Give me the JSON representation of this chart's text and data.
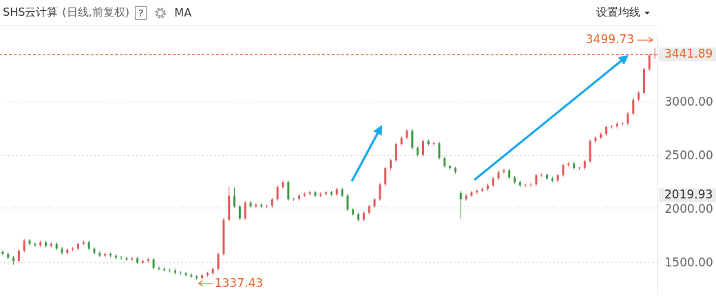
{
  "chart_data": {
    "type": "candlestick",
    "title": "SHS云计算",
    "subtitle": "(日线,前复权)",
    "categories": [
      null,
      null,
      null,
      null,
      null,
      null,
      null,
      null,
      null,
      null,
      null,
      null,
      null,
      null,
      null,
      null,
      null,
      null,
      null,
      null,
      null,
      null,
      null,
      null,
      null,
      null,
      null,
      null,
      null,
      null,
      null,
      null,
      null,
      null,
      null,
      null,
      null,
      null,
      null,
      null,
      null,
      null,
      null,
      null,
      null,
      null,
      null,
      null,
      null,
      null,
      null,
      null,
      null,
      null,
      null,
      null,
      null,
      null,
      null,
      null,
      null,
      null,
      null,
      null,
      null,
      null,
      null,
      null,
      null,
      null,
      null,
      null,
      null,
      null,
      null,
      null,
      null,
      null,
      null,
      null,
      null,
      null,
      null,
      null,
      null,
      null,
      null,
      null,
      null,
      null,
      null,
      null,
      null,
      null,
      null,
      null,
      null,
      null,
      null,
      null,
      null,
      null,
      null,
      null,
      null,
      null,
      null,
      null,
      null,
      null,
      null,
      null,
      null,
      null,
      null,
      null,
      null,
      null,
      null,
      null,
      null,
      null
    ],
    "ohlc": [
      [
        1600,
        1615,
        1565,
        1580
      ],
      [
        1580,
        1595,
        1530,
        1545
      ],
      [
        1545,
        1560,
        1480,
        1515
      ],
      [
        1515,
        1625,
        1500,
        1610
      ],
      [
        1610,
        1720,
        1595,
        1705
      ],
      [
        1705,
        1720,
        1660,
        1675
      ],
      [
        1675,
        1690,
        1645,
        1660
      ],
      [
        1660,
        1705,
        1645,
        1690
      ],
      [
        1690,
        1705,
        1640,
        1655
      ],
      [
        1655,
        1690,
        1640,
        1675
      ],
      [
        1675,
        1690,
        1615,
        1630
      ],
      [
        1630,
        1645,
        1575,
        1590
      ],
      [
        1590,
        1635,
        1575,
        1620
      ],
      [
        1620,
        1645,
        1605,
        1630
      ],
      [
        1630,
        1690,
        1615,
        1675
      ],
      [
        1675,
        1705,
        1660,
        1690
      ],
      [
        1690,
        1705,
        1615,
        1630
      ],
      [
        1630,
        1645,
        1575,
        1590
      ],
      [
        1590,
        1605,
        1550,
        1565
      ],
      [
        1565,
        1595,
        1550,
        1580
      ],
      [
        1580,
        1595,
        1550,
        1565
      ],
      [
        1565,
        1580,
        1530,
        1545
      ],
      [
        1545,
        1560,
        1525,
        1540
      ],
      [
        1540,
        1555,
        1515,
        1530
      ],
      [
        1530,
        1555,
        1515,
        1540
      ],
      [
        1540,
        1555,
        1485,
        1500
      ],
      [
        1500,
        1530,
        1485,
        1515
      ],
      [
        1515,
        1545,
        1500,
        1530
      ],
      [
        1530,
        1545,
        1435,
        1450
      ],
      [
        1450,
        1465,
        1425,
        1440
      ],
      [
        1440,
        1455,
        1415,
        1430
      ],
      [
        1430,
        1445,
        1410,
        1425
      ],
      [
        1425,
        1445,
        1390,
        1405
      ],
      [
        1405,
        1420,
        1385,
        1400
      ],
      [
        1400,
        1415,
        1370,
        1385
      ],
      [
        1385,
        1400,
        1355,
        1370
      ],
      [
        1370,
        1385,
        1337.43,
        1355
      ],
      [
        1355,
        1395,
        1340,
        1380
      ],
      [
        1380,
        1415,
        1365,
        1400
      ],
      [
        1400,
        1455,
        1385,
        1440
      ],
      [
        1440,
        1595,
        1425,
        1580
      ],
      [
        1580,
        1915,
        1565,
        1900
      ],
      [
        1900,
        2210,
        1885,
        2125
      ],
      [
        2125,
        2200,
        2010,
        2025
      ],
      [
        2025,
        2040,
        1895,
        1910
      ],
      [
        1910,
        2075,
        1895,
        2060
      ],
      [
        2060,
        2075,
        2010,
        2025
      ],
      [
        2025,
        2055,
        2010,
        2040
      ],
      [
        2040,
        2055,
        2010,
        2025
      ],
      [
        2025,
        2040,
        2010,
        2030
      ],
      [
        2030,
        2105,
        2010,
        2090
      ],
      [
        2090,
        2220,
        2075,
        2205
      ],
      [
        2205,
        2265,
        2190,
        2250
      ],
      [
        2250,
        2265,
        2075,
        2090
      ],
      [
        2090,
        2105,
        2075,
        2095
      ],
      [
        2095,
        2140,
        2075,
        2125
      ],
      [
        2125,
        2155,
        2110,
        2140
      ],
      [
        2140,
        2170,
        2125,
        2155
      ],
      [
        2155,
        2170,
        2110,
        2125
      ],
      [
        2125,
        2155,
        2110,
        2140
      ],
      [
        2140,
        2170,
        2125,
        2155
      ],
      [
        2155,
        2170,
        2120,
        2135
      ],
      [
        2135,
        2200,
        2120,
        2185
      ],
      [
        2185,
        2200,
        2110,
        2125
      ],
      [
        2125,
        2140,
        1980,
        1995
      ],
      [
        1995,
        2010,
        1935,
        1950
      ],
      [
        1950,
        1965,
        1885,
        1900
      ],
      [
        1900,
        1980,
        1885,
        1965
      ],
      [
        1965,
        2040,
        1950,
        2025
      ],
      [
        2025,
        2105,
        2010,
        2090
      ],
      [
        2090,
        2245,
        2075,
        2230
      ],
      [
        2230,
        2395,
        2215,
        2380
      ],
      [
        2380,
        2470,
        2365,
        2455
      ],
      [
        2455,
        2620,
        2440,
        2605
      ],
      [
        2605,
        2680,
        2590,
        2665
      ],
      [
        2665,
        2745,
        2650,
        2730
      ],
      [
        2730,
        2745,
        2555,
        2570
      ],
      [
        2570,
        2585,
        2490,
        2505
      ],
      [
        2505,
        2650,
        2490,
        2635
      ],
      [
        2635,
        2650,
        2590,
        2605
      ],
      [
        2605,
        2630,
        2590,
        2615
      ],
      [
        2615,
        2630,
        2460,
        2475
      ],
      [
        2475,
        2490,
        2385,
        2400
      ],
      [
        2400,
        2415,
        2365,
        2380
      ],
      [
        2380,
        2395,
        2330,
        2345
      ],
      [
        2150,
        2170,
        1910,
        2090
      ],
      [
        2090,
        2140,
        2075,
        2125
      ],
      [
        2125,
        2170,
        2110,
        2155
      ],
      [
        2155,
        2185,
        2140,
        2170
      ],
      [
        2170,
        2200,
        2155,
        2185
      ],
      [
        2185,
        2235,
        2170,
        2220
      ],
      [
        2220,
        2300,
        2205,
        2285
      ],
      [
        2285,
        2360,
        2270,
        2345
      ],
      [
        2345,
        2375,
        2330,
        2360
      ],
      [
        2360,
        2375,
        2280,
        2295
      ],
      [
        2295,
        2310,
        2235,
        2250
      ],
      [
        2250,
        2265,
        2205,
        2220
      ],
      [
        2220,
        2235,
        2205,
        2225
      ],
      [
        2225,
        2245,
        2205,
        2230
      ],
      [
        2230,
        2330,
        2215,
        2315
      ],
      [
        2315,
        2330,
        2300,
        2320
      ],
      [
        2320,
        2330,
        2270,
        2285
      ],
      [
        2285,
        2300,
        2250,
        2265
      ],
      [
        2265,
        2330,
        2250,
        2315
      ],
      [
        2315,
        2425,
        2300,
        2410
      ],
      [
        2410,
        2440,
        2395,
        2425
      ],
      [
        2425,
        2440,
        2365,
        2380
      ],
      [
        2380,
        2395,
        2365,
        2385
      ],
      [
        2385,
        2460,
        2365,
        2445
      ],
      [
        2445,
        2650,
        2430,
        2635
      ],
      [
        2635,
        2680,
        2620,
        2665
      ],
      [
        2665,
        2715,
        2650,
        2700
      ],
      [
        2700,
        2780,
        2685,
        2765
      ],
      [
        2765,
        2780,
        2750,
        2770
      ],
      [
        2770,
        2810,
        2750,
        2795
      ],
      [
        2795,
        2810,
        2780,
        2800
      ],
      [
        2800,
        2905,
        2780,
        2890
      ],
      [
        2890,
        3035,
        2875,
        3020
      ],
      [
        3020,
        3100,
        3005,
        3085
      ],
      [
        3085,
        3320,
        3070,
        3305
      ],
      [
        3305,
        3450,
        3290,
        3435
      ],
      [
        3435,
        3499.73,
        3400,
        3441.89
      ]
    ],
    "ylim": [
      1195,
      3630
    ],
    "yticks": [
      {
        "value": 1500,
        "label": "1500.00"
      },
      {
        "value": 2000,
        "label": "2000.00"
      },
      {
        "value": 2500,
        "label": "2500.00"
      },
      {
        "value": 3000,
        "label": "3000.00"
      }
    ],
    "grid": "y",
    "ref_lines": [
      {
        "axis": "y",
        "value": 3441.89,
        "label": "3441.89",
        "color": "#e8652a",
        "line_style": "dashed"
      },
      {
        "axis": "y",
        "value": 2019.93,
        "label": "2019.93",
        "color": "#333333",
        "line_style": "dotted"
      }
    ],
    "annotations": [
      "?",
      "MA",
      "设置均线",
      "3499.73",
      "1337.43"
    ]
  }
}
